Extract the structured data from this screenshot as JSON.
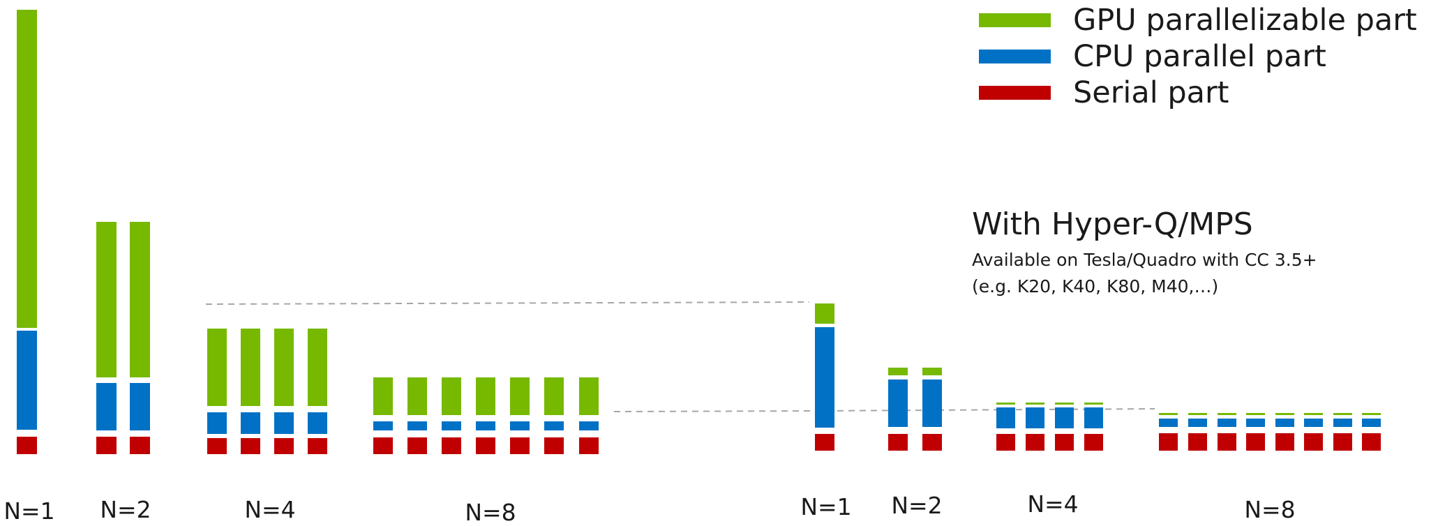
{
  "colors": {
    "gpu": "#76b900",
    "cpu": "#0071c5",
    "serial": "#c00000",
    "guide": "#a6a6a6"
  },
  "legend": [
    {
      "label": "GPU parallelizable part",
      "color": "#76b900"
    },
    {
      "label": "CPU parallel part",
      "color": "#0071c5"
    },
    {
      "label": "Serial part",
      "color": "#c00000"
    }
  ],
  "hyperq": {
    "title": "With Hyper-Q/MPS",
    "note_line1": "Available on Tesla/Quadro with CC 3.5+",
    "note_line2": "(e.g. K20, K40, K80, M40,…)"
  },
  "groups": {
    "without": [
      {
        "label": "N=1",
        "processes": 1
      },
      {
        "label": "N=2",
        "processes": 2
      },
      {
        "label": "N=4",
        "processes": 4
      },
      {
        "label": "N=8",
        "processes": 8
      }
    ],
    "with_hyperq": [
      {
        "label": "N=1",
        "processes": 1
      },
      {
        "label": "N=2",
        "processes": 2
      },
      {
        "label": "N=4",
        "processes": 4
      },
      {
        "label": "N=8",
        "processes": 8
      }
    ]
  }
}
